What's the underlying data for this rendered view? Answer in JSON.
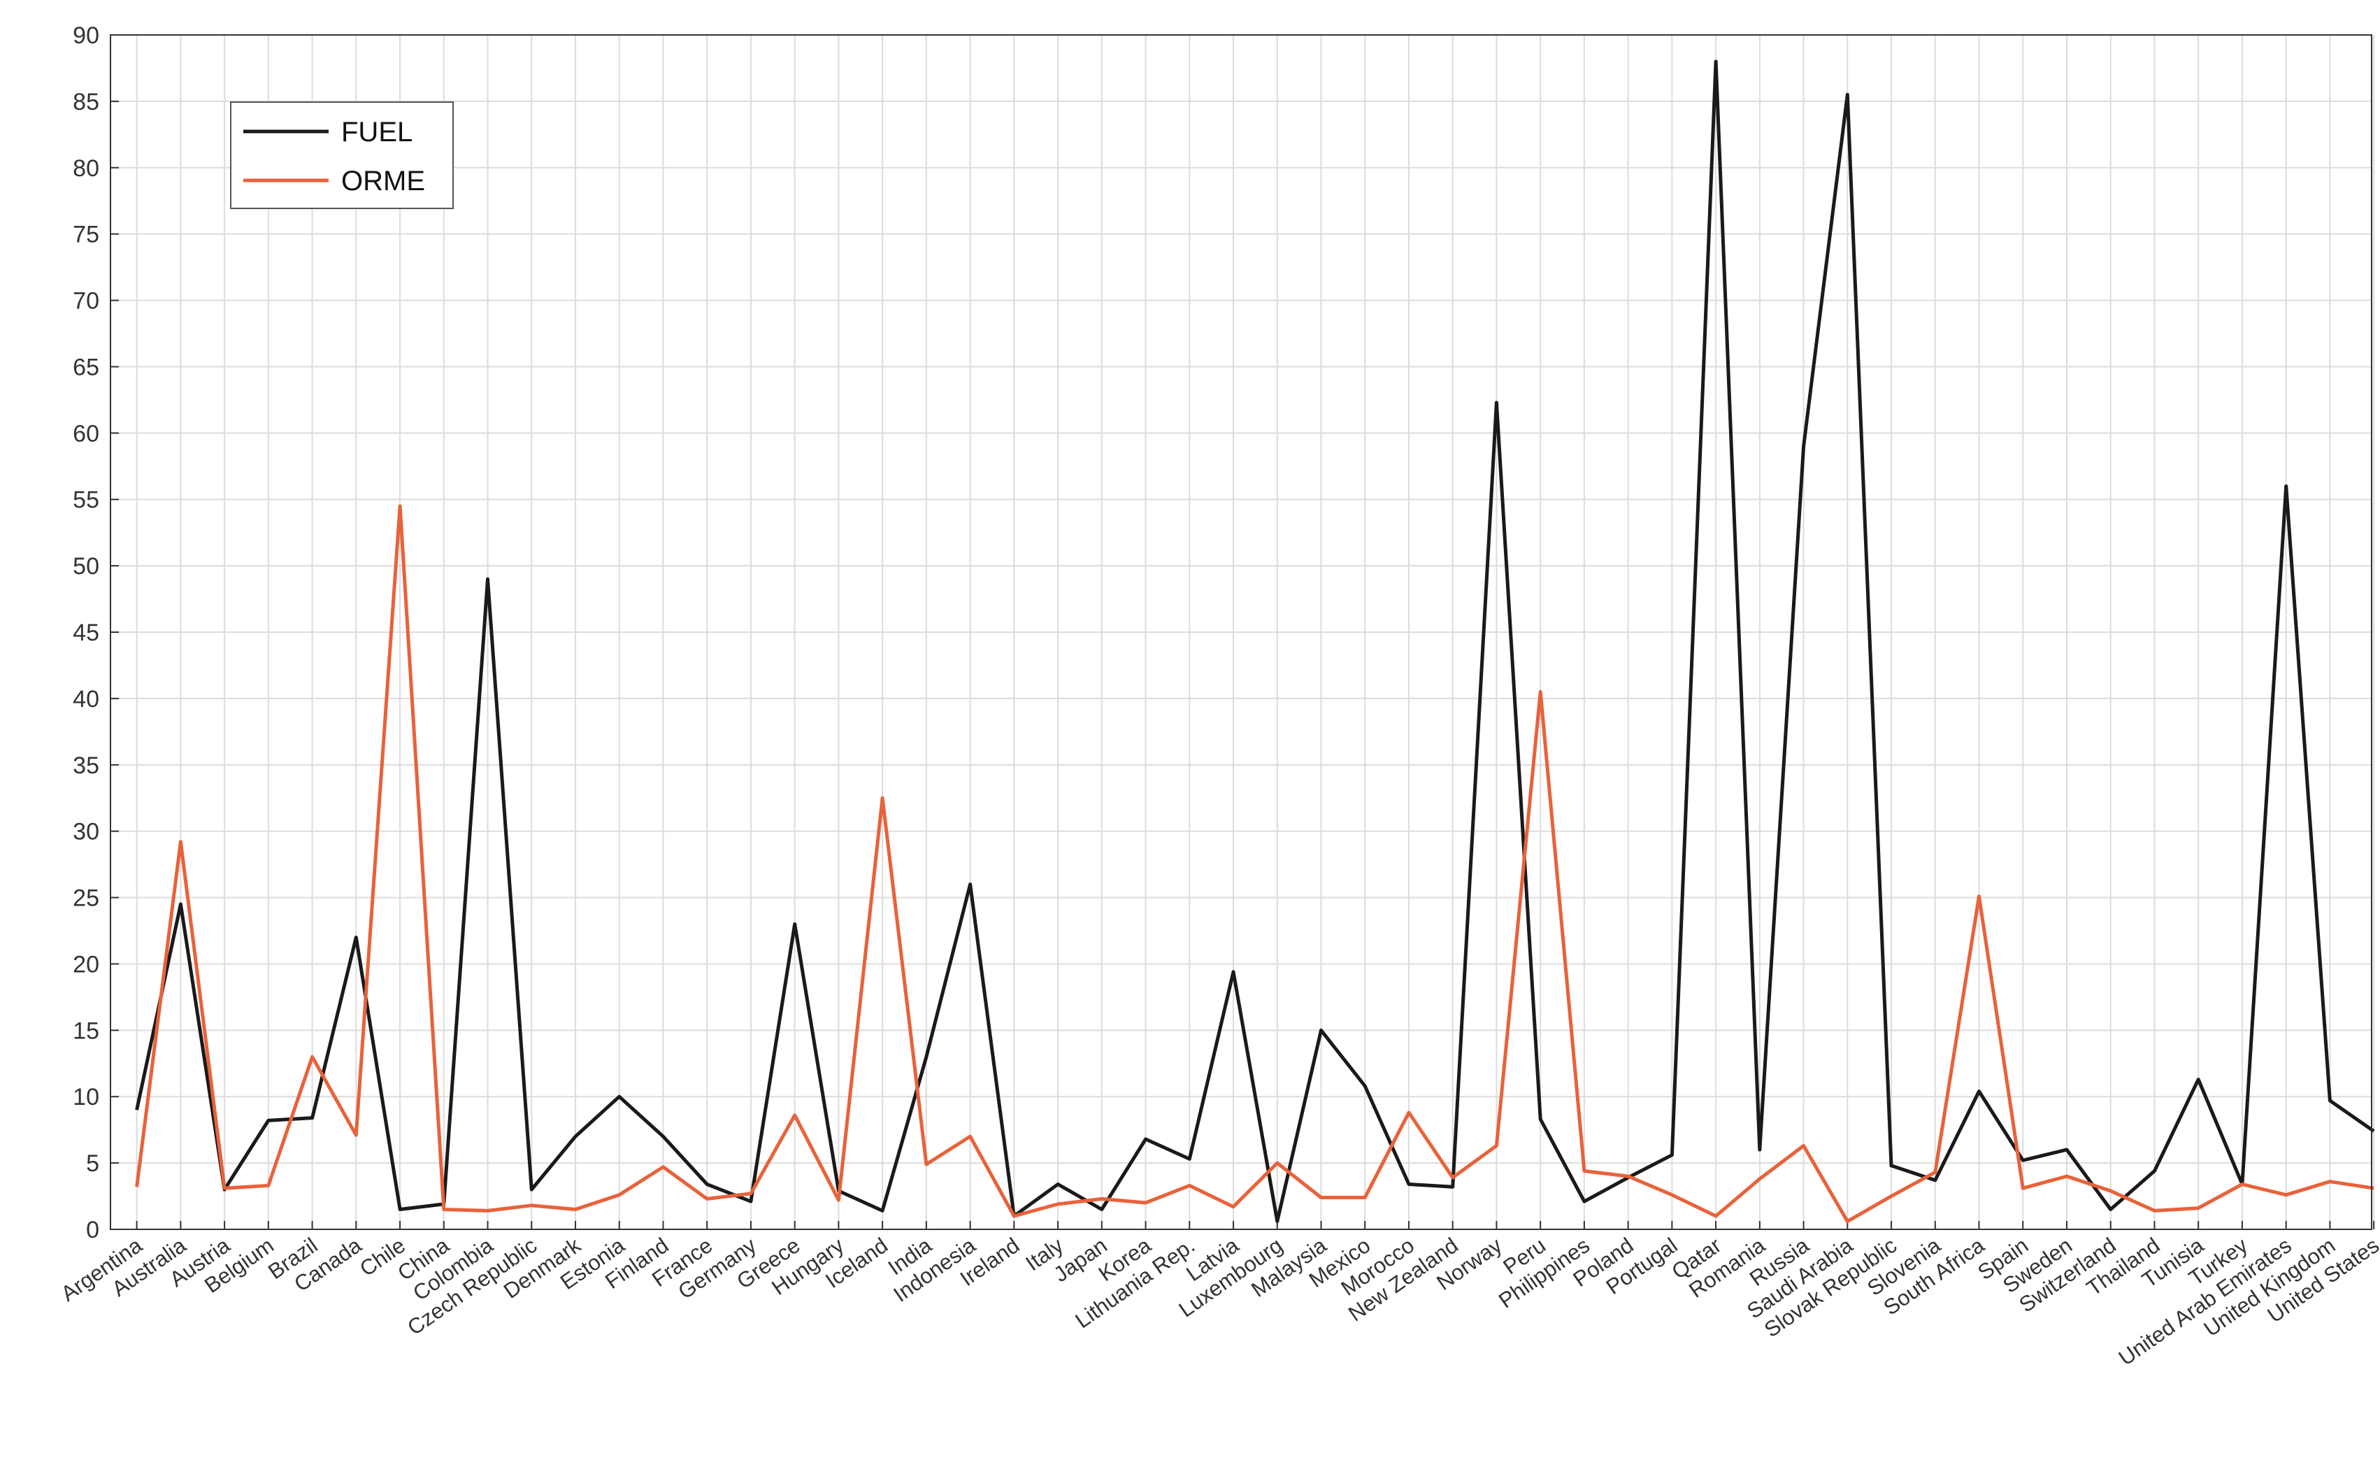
{
  "chart_data": {
    "type": "line",
    "title": "",
    "xlabel": "",
    "ylabel": "",
    "ylim": [
      0,
      90
    ],
    "yticks": [
      0,
      5,
      10,
      15,
      20,
      25,
      30,
      35,
      40,
      45,
      50,
      55,
      60,
      65,
      70,
      75,
      80,
      85,
      90
    ],
    "grid": true,
    "legend_position": "top-left",
    "categories": [
      "Argentina",
      "Australia",
      "Austria",
      "Belgium",
      "Brazil",
      "Canada",
      "Chile",
      "China",
      "Colombia",
      "Czech Republic",
      "Denmark",
      "Estonia",
      "Finland",
      "France",
      "Germany",
      "Greece",
      "Hungary",
      "Iceland",
      "India",
      "Indonesia",
      "Ireland",
      "Italy",
      "Japan",
      "Korea",
      "Lithuania Rep.",
      "Latvia",
      "Luxembourg",
      "Malaysia",
      "Mexico",
      "Morocco",
      "New Zealand",
      "Norway",
      "Peru",
      "Philippines",
      "Poland",
      "Portugal",
      "Qatar",
      "Romania",
      "Russia",
      "Saudi Arabia",
      "Slovak Republic",
      "Slovenia",
      "South Africa",
      "Spain",
      "Sweden",
      "Switzerland",
      "Thailand",
      "Tunisia",
      "Turkey",
      "United Arab Emirates",
      "United Kingdom",
      "United States"
    ],
    "series": [
      {
        "name": "FUEL",
        "color": "#1a1a1a",
        "values": [
          9.0,
          24.5,
          3.0,
          8.2,
          8.4,
          22.0,
          1.5,
          1.9,
          49.0,
          3.0,
          7.0,
          10.0,
          7.0,
          3.4,
          2.1,
          23.0,
          2.9,
          1.4,
          13.0,
          26.0,
          1.0,
          3.4,
          1.5,
          6.8,
          5.3,
          19.4,
          0.6,
          15.0,
          10.8,
          3.4,
          3.2,
          62.3,
          8.3,
          2.1,
          3.9,
          5.6,
          88.0,
          6.0,
          59.0,
          85.5,
          4.8,
          3.7,
          10.4,
          5.2,
          6.0,
          1.5,
          4.4,
          11.3,
          3.4,
          56.0,
          9.7,
          7.4
        ]
      },
      {
        "name": "ORME",
        "color": "#e8623a",
        "values": [
          3.2,
          29.2,
          3.1,
          3.3,
          13.0,
          7.1,
          54.5,
          1.5,
          1.4,
          1.8,
          1.5,
          2.6,
          4.7,
          2.3,
          2.7,
          8.6,
          2.2,
          32.5,
          4.9,
          7.0,
          1.0,
          1.9,
          2.3,
          2.0,
          3.3,
          1.7,
          5.0,
          2.4,
          2.4,
          8.8,
          3.9,
          6.3,
          40.5,
          4.4,
          4.0,
          2.6,
          1.0,
          3.8,
          6.3,
          0.6,
          2.5,
          4.3,
          25.1,
          3.1,
          4.0,
          2.9,
          1.4,
          1.6,
          3.4,
          2.6,
          3.6,
          3.1
        ]
      }
    ]
  }
}
